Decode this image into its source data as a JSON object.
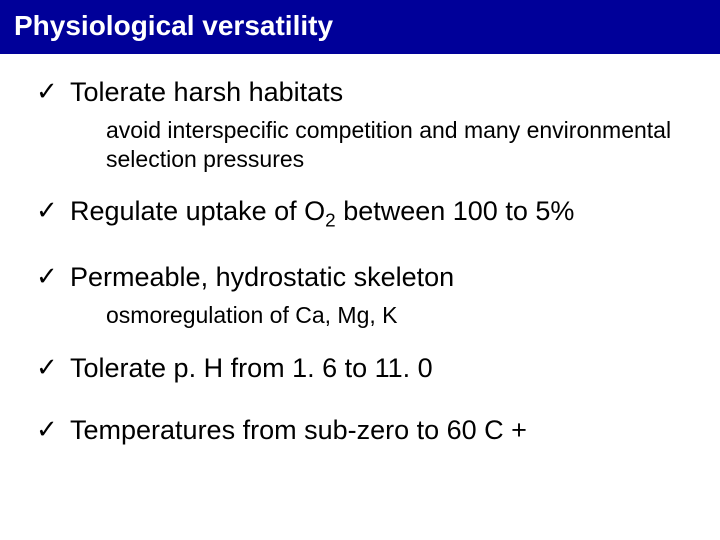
{
  "title": "Physiological versatility",
  "items": [
    {
      "main": "Tolerate harsh habitats",
      "sub": "avoid interspecific competition and many environmental selection pressures"
    },
    {
      "main_html": "Regulate uptake of O<sub>2</sub> between 100 to 5%",
      "main": "Regulate uptake of O2 between 100 to 5%"
    },
    {
      "main": "Permeable, hydrostatic skeleton",
      "sub": "osmoregulation of Ca, Mg, K"
    },
    {
      "main": "Tolerate p. H from 1. 6 to 11. 0"
    },
    {
      "main": "Temperatures from sub-zero to 60 C +"
    }
  ],
  "checkmark": "✓",
  "colors": {
    "title_bg": "#000099",
    "title_fg": "#ffffff",
    "text": "#000000",
    "page_bg": "#ffffff"
  }
}
